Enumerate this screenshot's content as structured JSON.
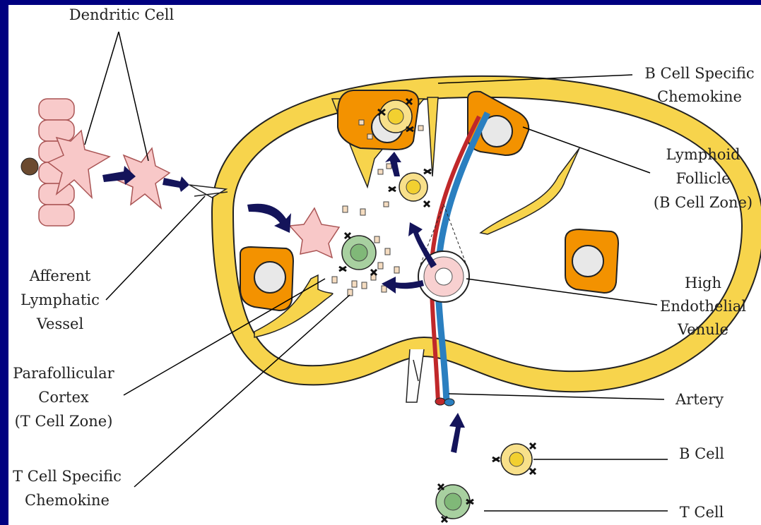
{
  "labels": {
    "dendritic_cell": [
      "Dendritic Cell"
    ],
    "b_cell_chemokine": [
      "B Cell Specific",
      "Chemokine"
    ],
    "lymphoid_follicle": [
      "Lymphoid",
      "Follicle",
      "(B Cell Zone)"
    ],
    "afferent_vessel": [
      "Afferent",
      "Lymphatic",
      "Vessel"
    ],
    "hev": [
      "High",
      "Endothelial",
      "Venule"
    ],
    "parafollicular": [
      "Parafollicular",
      "Cortex",
      "(T Cell Zone)"
    ],
    "artery": [
      "Artery"
    ],
    "t_cell_chemokine": [
      "T Cell Specific",
      "Chemokine"
    ],
    "b_cell": [
      "B Cell"
    ],
    "t_cell": [
      "T Cell"
    ]
  }
}
